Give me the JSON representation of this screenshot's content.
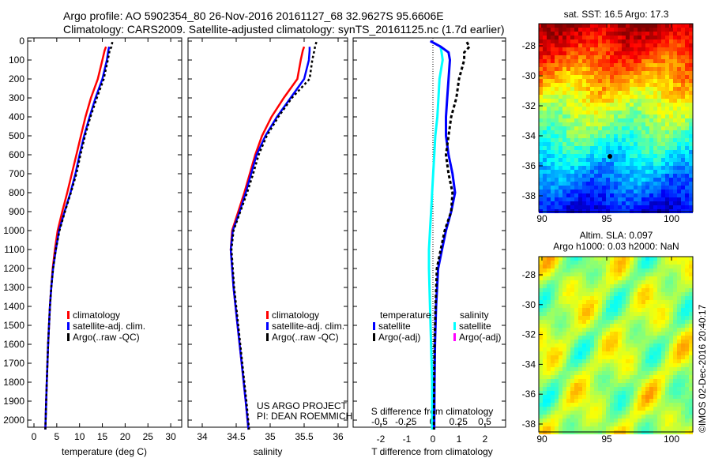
{
  "header": {
    "line1": "Argo profile: AO 5902354_80 26-Nov-2016 20161127_68 32.9627S 95.6606E",
    "line2": "Climatology: CARS2009. Satellite-adjusted climatology: synTS_20161125.nc (1.7d earlier)"
  },
  "colors": {
    "clim": "#ff0000",
    "sat": "#0000ff",
    "argo": "#000000",
    "sal_sat": "#00ffff",
    "sal_argo": "#ff00ff"
  },
  "chart_data": [
    {
      "type": "line",
      "id": "temperature",
      "xlabel": "temperature (deg C)",
      "xlim": [
        -1,
        32
      ],
      "xticks": [
        "0",
        "5",
        "10",
        "15",
        "20",
        "25",
        "30"
      ],
      "ylim": [
        0,
        2050
      ],
      "yticks": [
        "0",
        "100",
        "200",
        "300",
        "400",
        "500",
        "600",
        "700",
        "800",
        "900",
        "1000",
        "1100",
        "1200",
        "1300",
        "1400",
        "1500",
        "1600",
        "1700",
        "1800",
        "1900",
        "2000"
      ],
      "legend": [
        "climatology",
        "satellite-adj. clim.",
        "Argo(..raw -QC)"
      ],
      "series": [
        {
          "name": "climatology",
          "depth": [
            30,
            50,
            100,
            200,
            300,
            400,
            500,
            600,
            700,
            800,
            900,
            1000,
            1100,
            1200,
            1300,
            1400,
            1600,
            1800,
            2050
          ],
          "values": [
            15.8,
            15.5,
            15.0,
            14.0,
            12.5,
            11.3,
            10.3,
            9.3,
            8.3,
            7.3,
            6.2,
            5.2,
            4.6,
            4.1,
            3.8,
            3.5,
            3.1,
            2.8,
            2.5
          ]
        },
        {
          "name": "satellite-adj. clim.",
          "depth": [
            30,
            50,
            100,
            200,
            300,
            400,
            500,
            600,
            700,
            800,
            900,
            1000,
            1100,
            1200,
            1300,
            1400,
            1600,
            1800,
            2050
          ],
          "values": [
            16.5,
            16.3,
            16.0,
            15.0,
            13.5,
            12.2,
            11.0,
            10.0,
            9.1,
            8.0,
            6.7,
            5.5,
            4.8,
            4.2,
            3.8,
            3.5,
            3.1,
            2.8,
            2.5
          ]
        },
        {
          "name": "Argo(..raw -QC)",
          "depth": [
            5,
            30,
            50,
            100,
            200,
            300,
            400,
            500,
            600,
            700,
            800,
            900,
            1000,
            1100,
            1200,
            1300,
            1400,
            1600,
            1800,
            2050
          ],
          "values": [
            17.2,
            17.0,
            16.6,
            16.2,
            15.3,
            13.8,
            12.4,
            11.2,
            10.2,
            9.3,
            8.1,
            6.8,
            5.6,
            4.8,
            4.2,
            3.8,
            3.5,
            3.1,
            2.8,
            2.5
          ]
        }
      ]
    },
    {
      "type": "line",
      "id": "salinity",
      "xlabel": "salinity",
      "xlim": [
        33.8,
        36.1
      ],
      "xticks": [
        "34",
        "34.5",
        "35",
        "35.5",
        "36"
      ],
      "ylim": [
        0,
        2050
      ],
      "legend": [
        "climatology",
        "satellite-adj. clim.",
        "Argo(..raw -QC)"
      ],
      "annotation": [
        "US ARGO PROJECT",
        "PI: DEAN ROEMMICH"
      ],
      "series": [
        {
          "name": "climatology",
          "depth": [
            30,
            50,
            100,
            200,
            300,
            400,
            500,
            600,
            700,
            800,
            900,
            1000,
            1100,
            1300,
            1500,
            1700,
            1900,
            2050
          ],
          "values": [
            35.5,
            35.48,
            35.45,
            35.4,
            35.2,
            35.02,
            34.88,
            34.78,
            34.7,
            34.62,
            34.53,
            34.44,
            34.42,
            34.46,
            34.52,
            34.58,
            34.64,
            34.68
          ]
        },
        {
          "name": "satellite-adj. clim.",
          "depth": [
            30,
            50,
            100,
            200,
            300,
            400,
            500,
            600,
            700,
            800,
            900,
            1000,
            1100,
            1300,
            1500,
            1700,
            1900,
            2050
          ],
          "values": [
            35.58,
            35.58,
            35.57,
            35.5,
            35.3,
            35.1,
            34.93,
            34.8,
            34.72,
            34.64,
            34.55,
            34.45,
            34.42,
            34.46,
            34.52,
            34.58,
            34.64,
            34.68
          ]
        },
        {
          "name": "Argo(..raw -QC)",
          "depth": [
            5,
            30,
            50,
            100,
            200,
            300,
            400,
            500,
            600,
            700,
            800,
            900,
            1000,
            1100,
            1300,
            1500,
            1700,
            1900,
            2050
          ],
          "values": [
            35.68,
            35.66,
            35.65,
            35.62,
            35.58,
            35.32,
            35.12,
            34.95,
            34.83,
            34.75,
            34.66,
            34.56,
            34.46,
            34.43,
            34.47,
            34.53,
            34.59,
            34.65,
            34.69
          ]
        }
      ]
    },
    {
      "type": "line",
      "id": "difference",
      "xlabel": "T difference from climatology",
      "xlabel2": "S difference from climatology",
      "xlim": [
        -3,
        3
      ],
      "xticks": [
        "-2",
        "-1",
        "0",
        "1",
        "2"
      ],
      "xticks2": [
        "-0.5",
        "-0.25",
        "0",
        "0.25",
        "0.5"
      ],
      "legend_title_t": "temperature",
      "legend_title_s": "salinity",
      "legend": [
        "satellite",
        "Argo(-adj)",
        "satellite",
        "Argo(-adj)"
      ],
      "series": [
        {
          "name": "T satellite",
          "depth": [
            0,
            30,
            60,
            100,
            200,
            300,
            400,
            500,
            600,
            700,
            800,
            900,
            1000,
            1100,
            1200,
            1400,
            1600,
            1800,
            2050
          ],
          "values": [
            -0.1,
            0.3,
            0.6,
            0.65,
            0.6,
            0.55,
            0.5,
            0.5,
            0.6,
            0.75,
            0.85,
            0.7,
            0.5,
            0.35,
            0.2,
            0.12,
            0.08,
            0.06,
            0.05
          ]
        },
        {
          "name": "T Argo(-adj)",
          "depth": [
            5,
            30,
            60,
            100,
            200,
            300,
            400,
            500,
            600,
            700,
            800,
            900,
            1000,
            1100,
            1200,
            1400,
            1600,
            1800,
            2050
          ],
          "values": [
            1.3,
            1.4,
            1.2,
            1.2,
            1.0,
            0.9,
            0.7,
            0.6,
            0.5,
            0.6,
            0.75,
            0.7,
            0.45,
            0.3,
            0.15,
            0.1,
            0.06,
            0.05,
            0.04
          ]
        },
        {
          "name": "S satellite",
          "depth": [
            30,
            60,
            100,
            200,
            300,
            400,
            500,
            600,
            700,
            800,
            900,
            1000,
            1100,
            1200,
            1400,
            1600,
            1800,
            2050
          ],
          "values": [
            0.08,
            0.09,
            0.1,
            0.07,
            0.06,
            0.05,
            0.03,
            0.02,
            0.01,
            0.0,
            -0.01,
            -0.02,
            -0.03,
            -0.03,
            -0.02,
            -0.01,
            0.0,
            0.0
          ]
        }
      ]
    },
    {
      "type": "heatmap",
      "id": "sst-map",
      "title": "sat. SST: 16.5 Argo: 17.3",
      "xticks": [
        "90",
        "95",
        "100"
      ],
      "yticks": [
        "-28",
        "-30",
        "-32",
        "-34",
        "-36",
        "-38"
      ]
    },
    {
      "type": "heatmap",
      "id": "sla-map",
      "title": "Altim. SLA: 0.097",
      "subtitle": "Argo h1000: 0.03 h2000: NaN",
      "xticks": [
        "90",
        "95",
        "100"
      ],
      "yticks": [
        "-28",
        "-30",
        "-32",
        "-34",
        "-36",
        "-38"
      ]
    }
  ],
  "footer": {
    "credit": "©IMOS 02-Dec-2016 20:40:17"
  }
}
